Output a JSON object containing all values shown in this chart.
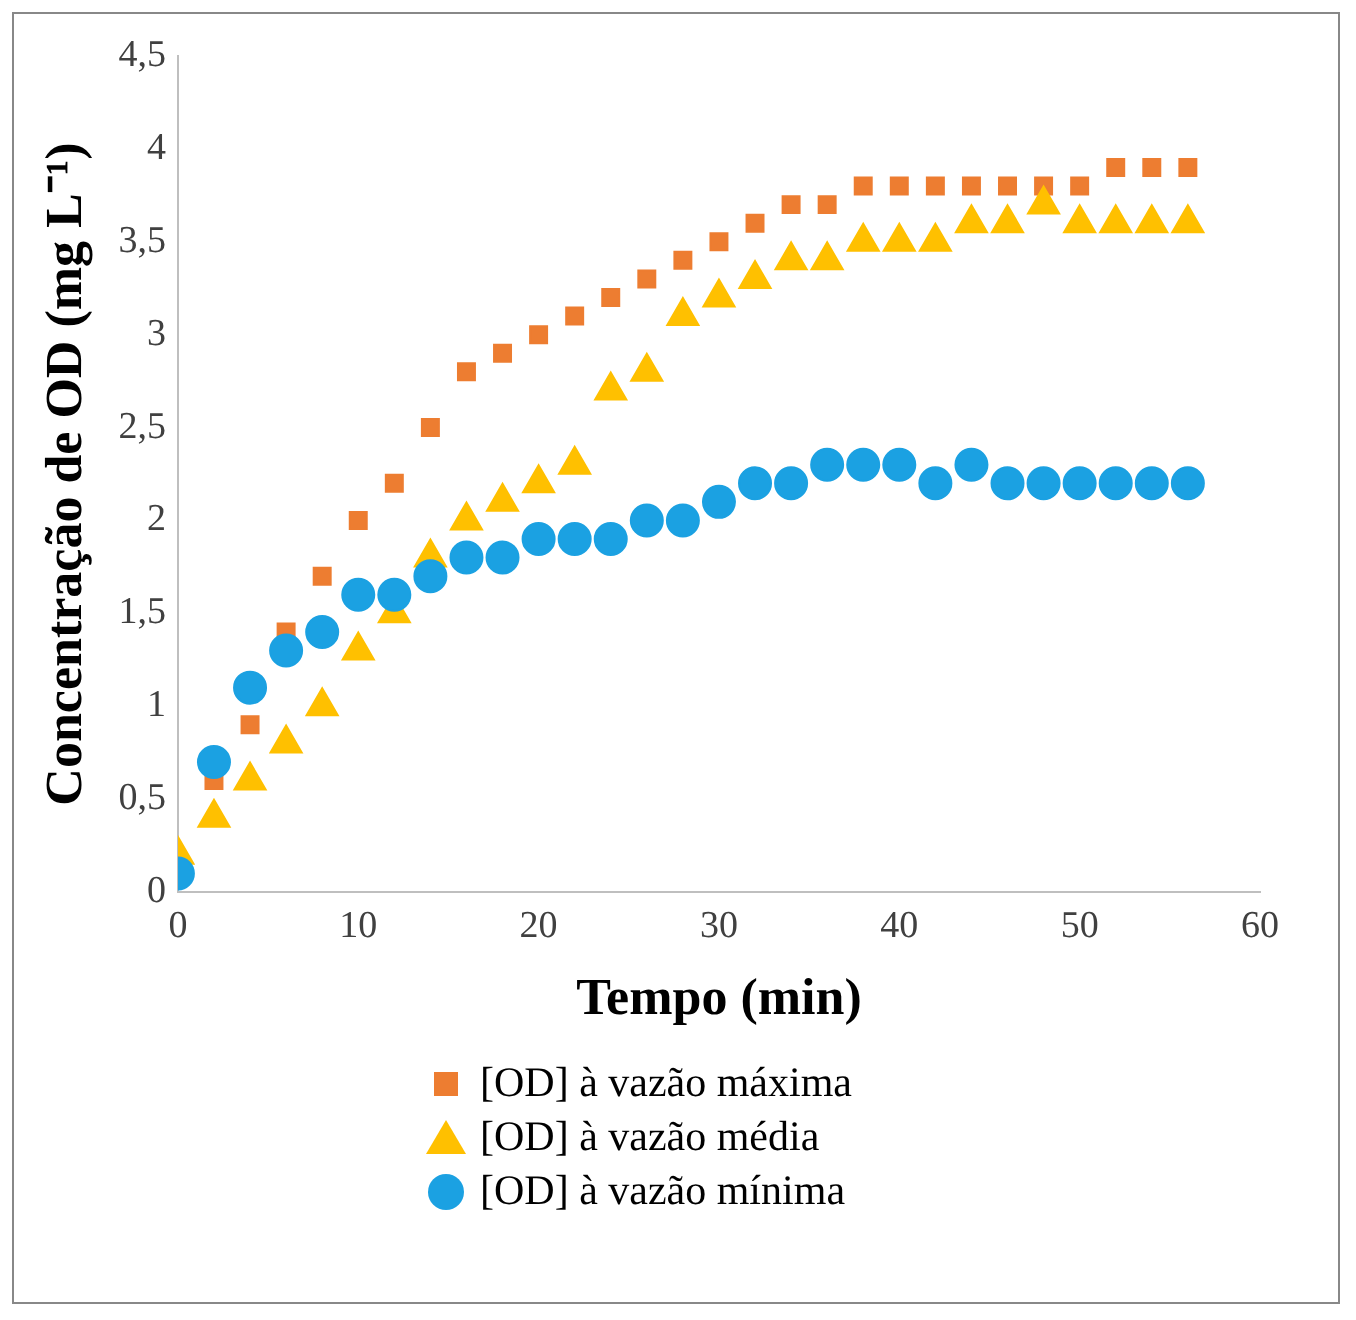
{
  "chart_data": {
    "type": "scatter",
    "xlabel": "Tempo (min)",
    "ylabel": "Concentração de OD (mg L⁻¹)",
    "x": [
      0,
      2,
      4,
      6,
      8,
      10,
      12,
      14,
      16,
      18,
      20,
      22,
      24,
      26,
      28,
      30,
      32,
      34,
      36,
      38,
      40,
      42,
      44,
      46,
      48,
      50,
      52,
      54,
      56
    ],
    "xlim": [
      0,
      60
    ],
    "xticks": [
      0,
      10,
      20,
      30,
      40,
      50,
      60
    ],
    "ylim": [
      0,
      4.5
    ],
    "yticks": [
      0,
      {
        "value": 0.5,
        "label": "0,5"
      },
      1,
      {
        "value": 1.5,
        "label": "1,5"
      },
      2,
      {
        "value": 2.5,
        "label": "2,5"
      },
      3,
      {
        "value": 3.5,
        "label": "3,5"
      },
      4,
      {
        "value": 4.5,
        "label": "4,5"
      }
    ],
    "grid": false,
    "legend": "bottom",
    "series": [
      {
        "name": "[OD] à vazão máxima",
        "color": "#ed7d31",
        "marker": "square",
        "values": [
          null,
          0.6,
          0.9,
          1.4,
          1.7,
          2.0,
          2.2,
          2.5,
          2.8,
          2.9,
          3.0,
          3.1,
          3.2,
          3.3,
          3.4,
          3.5,
          3.6,
          3.7,
          3.7,
          3.8,
          3.8,
          3.8,
          3.8,
          3.8,
          3.8,
          3.8,
          3.9,
          3.9,
          3.9
        ]
      },
      {
        "name": "[OD] à vazão média",
        "color": "#ffc000",
        "marker": "triangle",
        "values": [
          0.2,
          0.4,
          0.6,
          0.8,
          1.0,
          1.3,
          1.5,
          1.8,
          2.0,
          2.1,
          2.2,
          2.3,
          2.7,
          2.8,
          3.1,
          3.2,
          3.3,
          3.4,
          3.4,
          3.5,
          3.5,
          3.5,
          3.6,
          3.6,
          3.7,
          3.6,
          3.6,
          3.6,
          3.6
        ]
      },
      {
        "name": "[OD] à vazão mínima",
        "color": "#1ba1e2",
        "marker": "circle",
        "values": [
          0.1,
          0.7,
          1.1,
          1.3,
          1.4,
          1.6,
          1.6,
          1.7,
          1.8,
          1.8,
          1.9,
          1.9,
          1.9,
          2.0,
          2.0,
          2.1,
          2.2,
          2.2,
          2.3,
          2.3,
          2.3,
          2.2,
          2.3,
          2.2,
          2.2,
          2.2,
          2.2,
          2.2,
          2.2
        ]
      }
    ]
  }
}
